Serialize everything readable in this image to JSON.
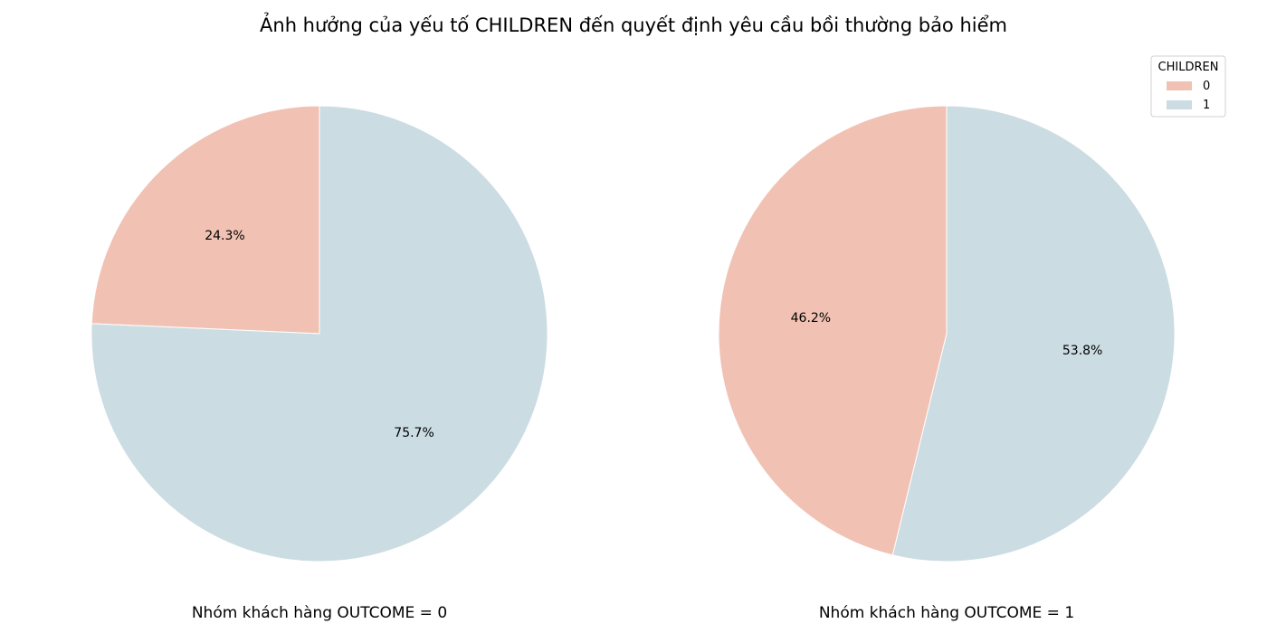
{
  "title": "Ảnh hưởng của yếu tố CHILDREN đến quyết định yêu cầu bồi thường bảo hiểm",
  "legend": {
    "title": "CHILDREN",
    "placement": "top-right",
    "entries": [
      {
        "label": "0",
        "color": "#f1c2b4"
      },
      {
        "label": "1",
        "color": "#cbdce2"
      }
    ]
  },
  "chart_data": [
    {
      "type": "pie",
      "title": "Nhóm khách hàng OUTCOME = 0",
      "categories": [
        "0",
        "1"
      ],
      "values": [
        24.3,
        75.7
      ],
      "labels": [
        "24.3%",
        "75.7%"
      ],
      "colors": [
        "#f1c2b4",
        "#cbdce2"
      ],
      "startangle_deg": 90,
      "direction": "counterclockwise"
    },
    {
      "type": "pie",
      "title": "Nhóm khách hàng OUTCOME = 1",
      "categories": [
        "0",
        "1"
      ],
      "values": [
        46.2,
        53.8
      ],
      "labels": [
        "46.2%",
        "53.8%"
      ],
      "colors": [
        "#f1c2b4",
        "#cbdce2"
      ],
      "startangle_deg": 90,
      "direction": "counterclockwise"
    }
  ]
}
